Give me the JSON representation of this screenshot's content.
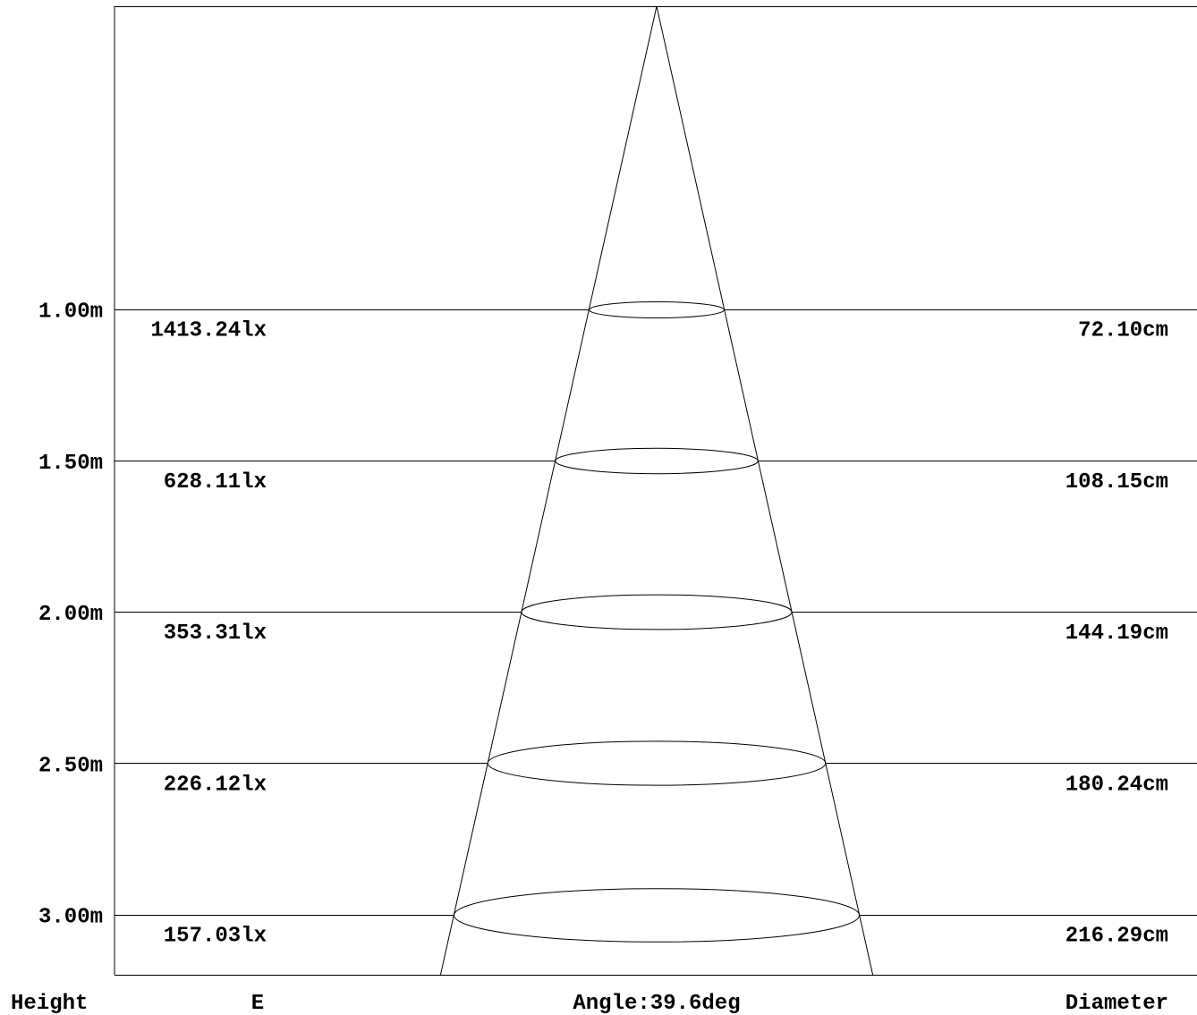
{
  "chart_data": {
    "type": "beam-spread",
    "beam_angle_label": "Angle:39.6deg",
    "beam_angle_deg": 39.6,
    "footer": {
      "height_label": "Height",
      "illuminance_label": "E",
      "diameter_label": "Diameter"
    },
    "rows": [
      {
        "height_m": 1.0,
        "height_label": "1.00m",
        "illuminance_label": "1413.24lx",
        "diameter_label": "72.10cm",
        "diameter_cm": 72.1
      },
      {
        "height_m": 1.5,
        "height_label": "1.50m",
        "illuminance_label": "628.11lx",
        "diameter_label": "108.15cm",
        "diameter_cm": 108.15
      },
      {
        "height_m": 2.0,
        "height_label": "2.00m",
        "illuminance_label": "353.31lx",
        "diameter_label": "144.19cm",
        "diameter_cm": 144.19
      },
      {
        "height_m": 2.5,
        "height_label": "2.50m",
        "illuminance_label": "226.12lx",
        "diameter_label": "180.24cm",
        "diameter_cm": 180.24
      },
      {
        "height_m": 3.0,
        "height_label": "3.00m",
        "illuminance_label": "157.03lx",
        "diameter_label": "216.29cm",
        "diameter_cm": 216.29
      }
    ],
    "height_range_m": [
      0,
      3.2
    ]
  },
  "colors": {
    "line": "#000000",
    "text": "#000000",
    "background": "#ffffff"
  }
}
